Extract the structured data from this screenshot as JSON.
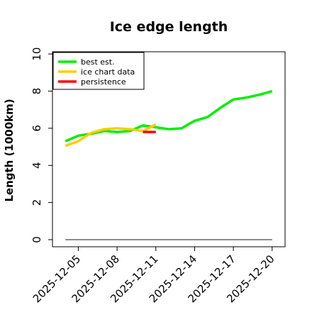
{
  "chart_data": {
    "type": "line",
    "title": "Ice edge length",
    "xlabel": "",
    "ylabel": "Length (1000km)",
    "ylim": [
      0,
      10.5
    ],
    "xlim": [
      "2025-12-03",
      "2025-12-21"
    ],
    "yticks": [
      0,
      2,
      4,
      6,
      8,
      10
    ],
    "xticks": [
      "2025-12-05",
      "2025-12-08",
      "2025-12-11",
      "2025-12-14",
      "2025-12-17",
      "2025-12-20"
    ],
    "grid": false,
    "legend_position": "top-left",
    "series": [
      {
        "name": "best est.",
        "color": "#00ee00",
        "x": [
          "2025-12-04",
          "2025-12-05",
          "2025-12-06",
          "2025-12-07",
          "2025-12-08",
          "2025-12-09",
          "2025-12-10",
          "2025-12-11",
          "2025-12-12",
          "2025-12-13",
          "2025-12-14",
          "2025-12-15",
          "2025-12-16",
          "2025-12-17",
          "2025-12-18",
          "2025-12-19",
          "2025-12-20"
        ],
        "y": [
          5.3,
          5.6,
          5.7,
          5.85,
          5.8,
          5.85,
          6.15,
          6.05,
          5.95,
          6.0,
          6.4,
          6.6,
          7.1,
          7.55,
          7.65,
          7.8,
          8.0
        ]
      },
      {
        "name": "ice chart data",
        "color": "#ffcc00",
        "x": [
          "2025-12-04",
          "2025-12-05",
          "2025-12-06",
          "2025-12-07",
          "2025-12-08",
          "2025-12-09",
          "2025-12-10",
          "2025-12-11"
        ],
        "y": [
          5.05,
          5.3,
          5.75,
          5.95,
          6.0,
          5.95,
          5.85,
          6.2
        ]
      },
      {
        "name": "persistence",
        "color": "#ff0000",
        "x": [
          "2025-12-10",
          "2025-12-11"
        ],
        "y": [
          5.8,
          5.8
        ]
      },
      {
        "name": "",
        "color": "#666666",
        "x": [
          "2025-12-04",
          "2025-12-20"
        ],
        "y": [
          0,
          0
        ]
      }
    ]
  }
}
